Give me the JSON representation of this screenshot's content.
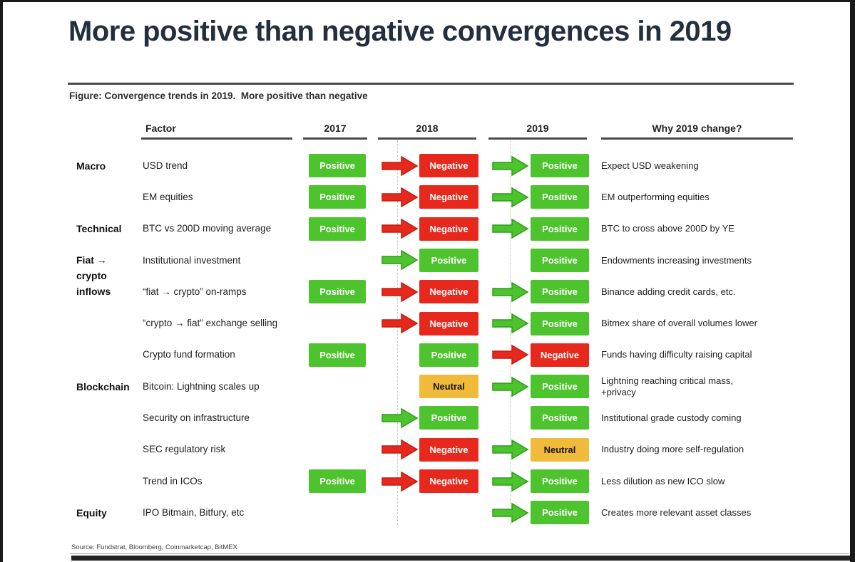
{
  "page": {
    "title": "More positive than negative convergences in 2019",
    "figure_caption": "Figure: Convergence trends in 2019.  More positive than negative",
    "source": "Source: Fundstrat, Bloomberg, Coinmarketcap, BitMEX"
  },
  "colors": {
    "positive": "#4dc32e",
    "negative": "#e6291c",
    "neutral": "#f0ba3a",
    "arrow_green": "#4dc32e",
    "arrow_green_border": "#2f9c18",
    "arrow_red": "#e6291c",
    "arrow_red_border": "#bf1d12",
    "title_text": "#232f3e",
    "rule": "#4a4a4a"
  },
  "chart_data": {
    "type": "table",
    "title": "Convergence trends in 2019. More positive than negative",
    "columns": [
      "Factor",
      "2017",
      "2018",
      "2019",
      "Why 2019 change?"
    ],
    "status_colors": {
      "Positive": "green",
      "Negative": "red",
      "Neutral": "amber"
    },
    "rows": [
      {
        "category": "Macro",
        "factor": "USD trend",
        "y2017": "Positive",
        "arrow_2018": "red",
        "y2018": "Negative",
        "arrow_2019": "green",
        "y2019": "Positive",
        "why": "Expect USD weakening"
      },
      {
        "category": "",
        "factor": "EM equities",
        "y2017": "Positive",
        "arrow_2018": "red",
        "y2018": "Negative",
        "arrow_2019": "green",
        "y2019": "Positive",
        "why": "EM outperforming equities"
      },
      {
        "category": "Technical",
        "factor": "BTC vs 200D moving average",
        "y2017": "Positive",
        "arrow_2018": "red",
        "y2018": "Negative",
        "arrow_2019": "green",
        "y2019": "Positive",
        "why": "BTC to cross above 200D by YE"
      },
      {
        "category": "Fiat →\ncrypto\ninflows",
        "factor": "Institutional investment",
        "y2017": null,
        "arrow_2018": "green",
        "y2018": "Positive",
        "arrow_2019": null,
        "y2019": "Positive",
        "why": "Endowments increasing investments"
      },
      {
        "category": "",
        "factor": "“fiat → crypto” on-ramps",
        "y2017": "Positive",
        "arrow_2018": "red",
        "y2018": "Negative",
        "arrow_2019": "green",
        "y2019": "Positive",
        "why": "Binance adding credit cards, etc."
      },
      {
        "category": "",
        "factor": "“crypto → fiat” exchange selling",
        "y2017": null,
        "arrow_2018": "red",
        "y2018": "Negative",
        "arrow_2019": "green",
        "y2019": "Positive",
        "why": "Bitmex share of overall volumes lower"
      },
      {
        "category": "",
        "factor": "Crypto fund formation",
        "y2017": "Positive",
        "arrow_2018": null,
        "y2018": "Positive",
        "arrow_2019": "red",
        "y2019": "Negative",
        "why": "Funds having difficulty raising capital"
      },
      {
        "category": "Blockchain",
        "factor": "Bitcoin: Lightning scales up",
        "y2017": null,
        "arrow_2018": null,
        "y2018": "Neutral",
        "arrow_2019": "green",
        "y2019": "Positive",
        "why": "Lightning reaching critical mass,\n+privacy"
      },
      {
        "category": "",
        "factor": "Security on infrastructure",
        "y2017": null,
        "arrow_2018": "green",
        "y2018": "Positive",
        "arrow_2019": null,
        "y2019": "Positive",
        "why": "Institutional grade custody coming"
      },
      {
        "category": "",
        "factor": "SEC regulatory risk",
        "y2017": null,
        "arrow_2018": "red",
        "y2018": "Negative",
        "arrow_2019": "green",
        "y2019": "Neutral",
        "why": "Industry doing more self-regulation"
      },
      {
        "category": "",
        "factor": "Trend in ICOs",
        "y2017": "Positive",
        "arrow_2018": "red",
        "y2018": "Negative",
        "arrow_2019": "green",
        "y2019": "Positive",
        "why": "Less dilution as new ICO slow"
      },
      {
        "category": "Equity",
        "factor": "IPO Bitmain, Bitfury, etc",
        "y2017": null,
        "arrow_2018": null,
        "y2018": null,
        "arrow_2019": "green",
        "y2019": "Positive",
        "why": "Creates more relevant asset classes"
      }
    ]
  }
}
